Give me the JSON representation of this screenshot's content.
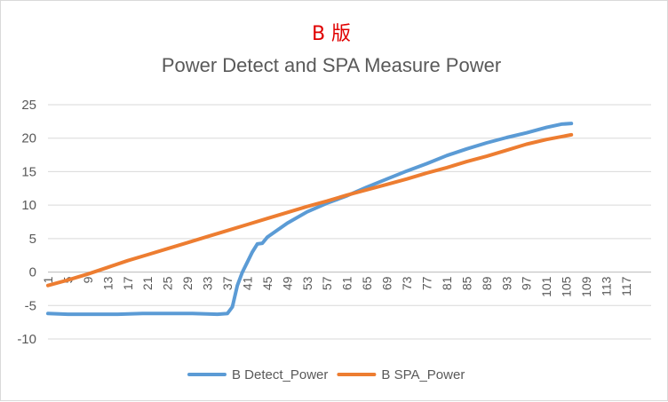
{
  "chart_data": {
    "type": "line",
    "title_line1": "B 版",
    "title": "Power Detect and SPA Measure Power",
    "xlabel": "",
    "ylabel": "",
    "ylim": [
      -10,
      25
    ],
    "yticks": [
      "25",
      "20",
      "15",
      "10",
      "5",
      "0",
      "-5",
      "-10"
    ],
    "ytick_values": [
      25,
      20,
      15,
      10,
      5,
      0,
      -5,
      -10
    ],
    "xlim": [
      1,
      122
    ],
    "xticks": [
      "1",
      "5",
      "9",
      "13",
      "17",
      "21",
      "25",
      "29",
      "33",
      "37",
      "41",
      "45",
      "49",
      "53",
      "57",
      "61",
      "65",
      "69",
      "73",
      "77",
      "81",
      "85",
      "89",
      "93",
      "97",
      "101",
      "105",
      "109",
      "113",
      "117"
    ],
    "grid": true,
    "legend_position": "bottom",
    "series": [
      {
        "name": "B Detect_Power",
        "color": "#5b9bd5",
        "points": [
          [
            1,
            -6.2
          ],
          [
            5,
            -6.3
          ],
          [
            10,
            -6.3
          ],
          [
            15,
            -6.3
          ],
          [
            20,
            -6.2
          ],
          [
            25,
            -6.2
          ],
          [
            30,
            -6.2
          ],
          [
            35,
            -6.3
          ],
          [
            37,
            -6.2
          ],
          [
            38,
            -5.2
          ],
          [
            39,
            -2
          ],
          [
            40,
            0
          ],
          [
            41,
            1.5
          ],
          [
            42,
            3
          ],
          [
            43,
            4.2
          ],
          [
            44,
            4.3
          ],
          [
            45,
            5.2
          ],
          [
            49,
            7.3
          ],
          [
            53,
            9
          ],
          [
            57,
            10.3
          ],
          [
            61,
            11.4
          ],
          [
            65,
            12.7
          ],
          [
            69,
            13.9
          ],
          [
            73,
            15.1
          ],
          [
            77,
            16.2
          ],
          [
            81,
            17.4
          ],
          [
            85,
            18.4
          ],
          [
            89,
            19.3
          ],
          [
            93,
            20.1
          ],
          [
            97,
            20.8
          ],
          [
            101,
            21.6
          ],
          [
            104,
            22.1
          ],
          [
            106,
            22.2
          ]
        ]
      },
      {
        "name": "B SPA_Power",
        "color": "#ed7d31",
        "points": [
          [
            1,
            -2
          ],
          [
            5,
            -1.2
          ],
          [
            9,
            -0.3
          ],
          [
            13,
            0.7
          ],
          [
            17,
            1.7
          ],
          [
            21,
            2.6
          ],
          [
            25,
            3.5
          ],
          [
            29,
            4.4
          ],
          [
            33,
            5.3
          ],
          [
            37,
            6.2
          ],
          [
            41,
            7.1
          ],
          [
            45,
            8
          ],
          [
            49,
            8.9
          ],
          [
            53,
            9.8
          ],
          [
            57,
            10.6
          ],
          [
            61,
            11.5
          ],
          [
            65,
            12.3
          ],
          [
            69,
            13.1
          ],
          [
            73,
            13.9
          ],
          [
            77,
            14.8
          ],
          [
            81,
            15.6
          ],
          [
            85,
            16.5
          ],
          [
            89,
            17.3
          ],
          [
            93,
            18.2
          ],
          [
            97,
            19.1
          ],
          [
            101,
            19.8
          ],
          [
            106,
            20.5
          ]
        ]
      }
    ]
  }
}
